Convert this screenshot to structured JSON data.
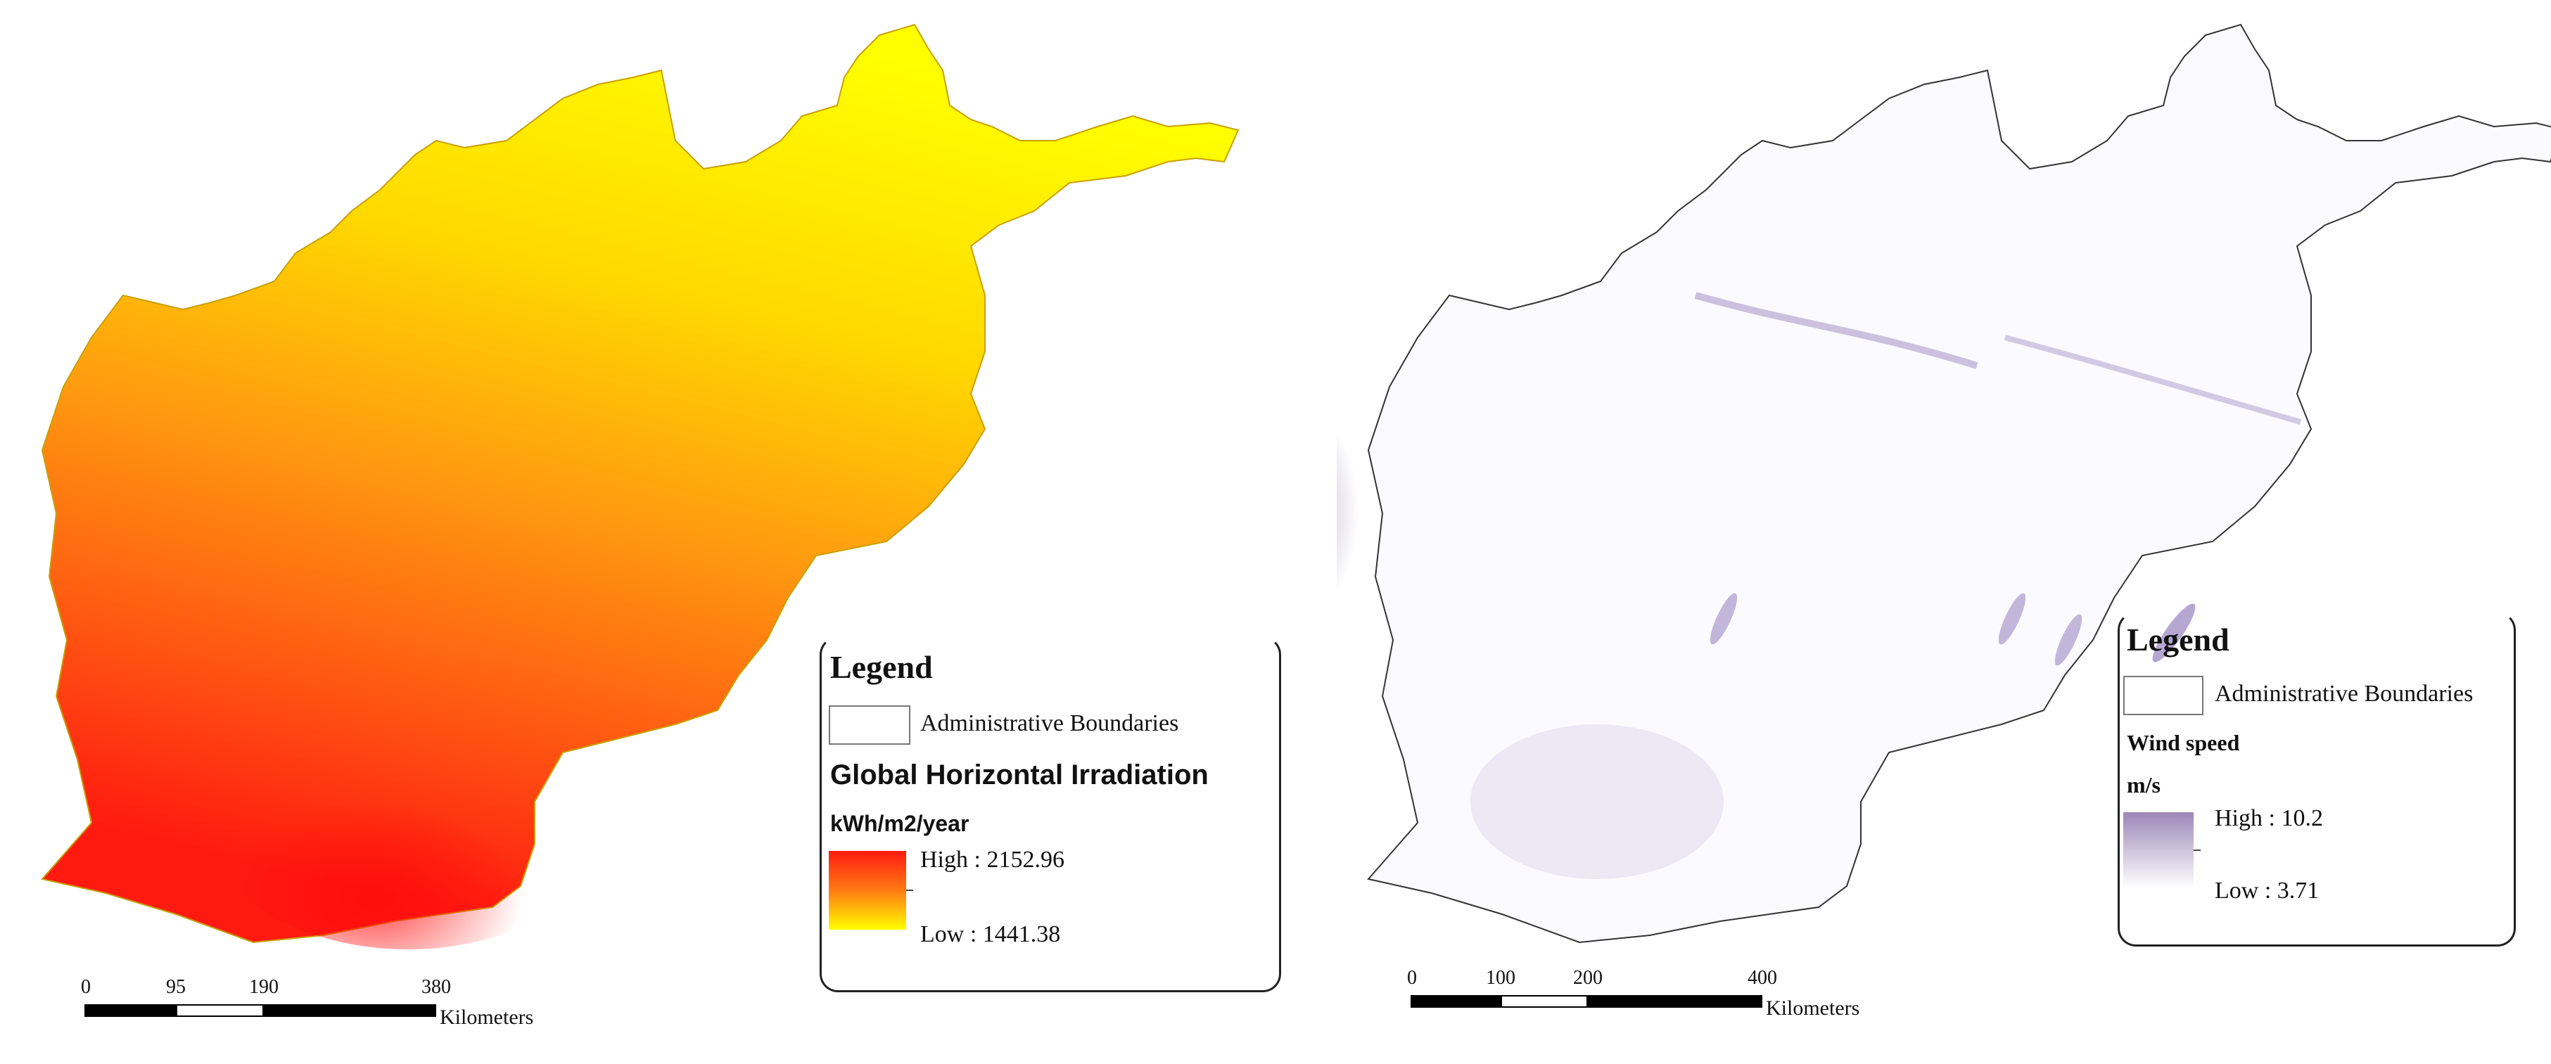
{
  "left_map": {
    "legend_title": "Legend",
    "admin_label": "Administrative Boundaries",
    "layer_name": "Global Horizontal Irradiation",
    "unit": "kWh/m2/year",
    "high_label": "High : 2152.96",
    "low_label": "Low : 1441.38",
    "high_value": 2152.96,
    "low_value": 1441.38,
    "ramp_colors": {
      "high": "#ff0000",
      "low": "#ffff00"
    },
    "scale": {
      "ticks": [
        "0",
        "95",
        "190",
        "380"
      ],
      "unit": "Kilometers"
    }
  },
  "right_map": {
    "legend_title": "Legend",
    "admin_label": "Administrative Boundaries",
    "layer_name": "Wind speed",
    "unit": "m/s",
    "high_label": "High : 10.2",
    "low_label": "Low : 3.71",
    "high_value": 10.2,
    "low_value": 3.71,
    "ramp_colors": {
      "high": "#9c87b8",
      "low": "#ffffff"
    },
    "scale": {
      "ticks": [
        "0",
        "100",
        "200",
        "400"
      ],
      "unit": "Kilometers"
    }
  }
}
